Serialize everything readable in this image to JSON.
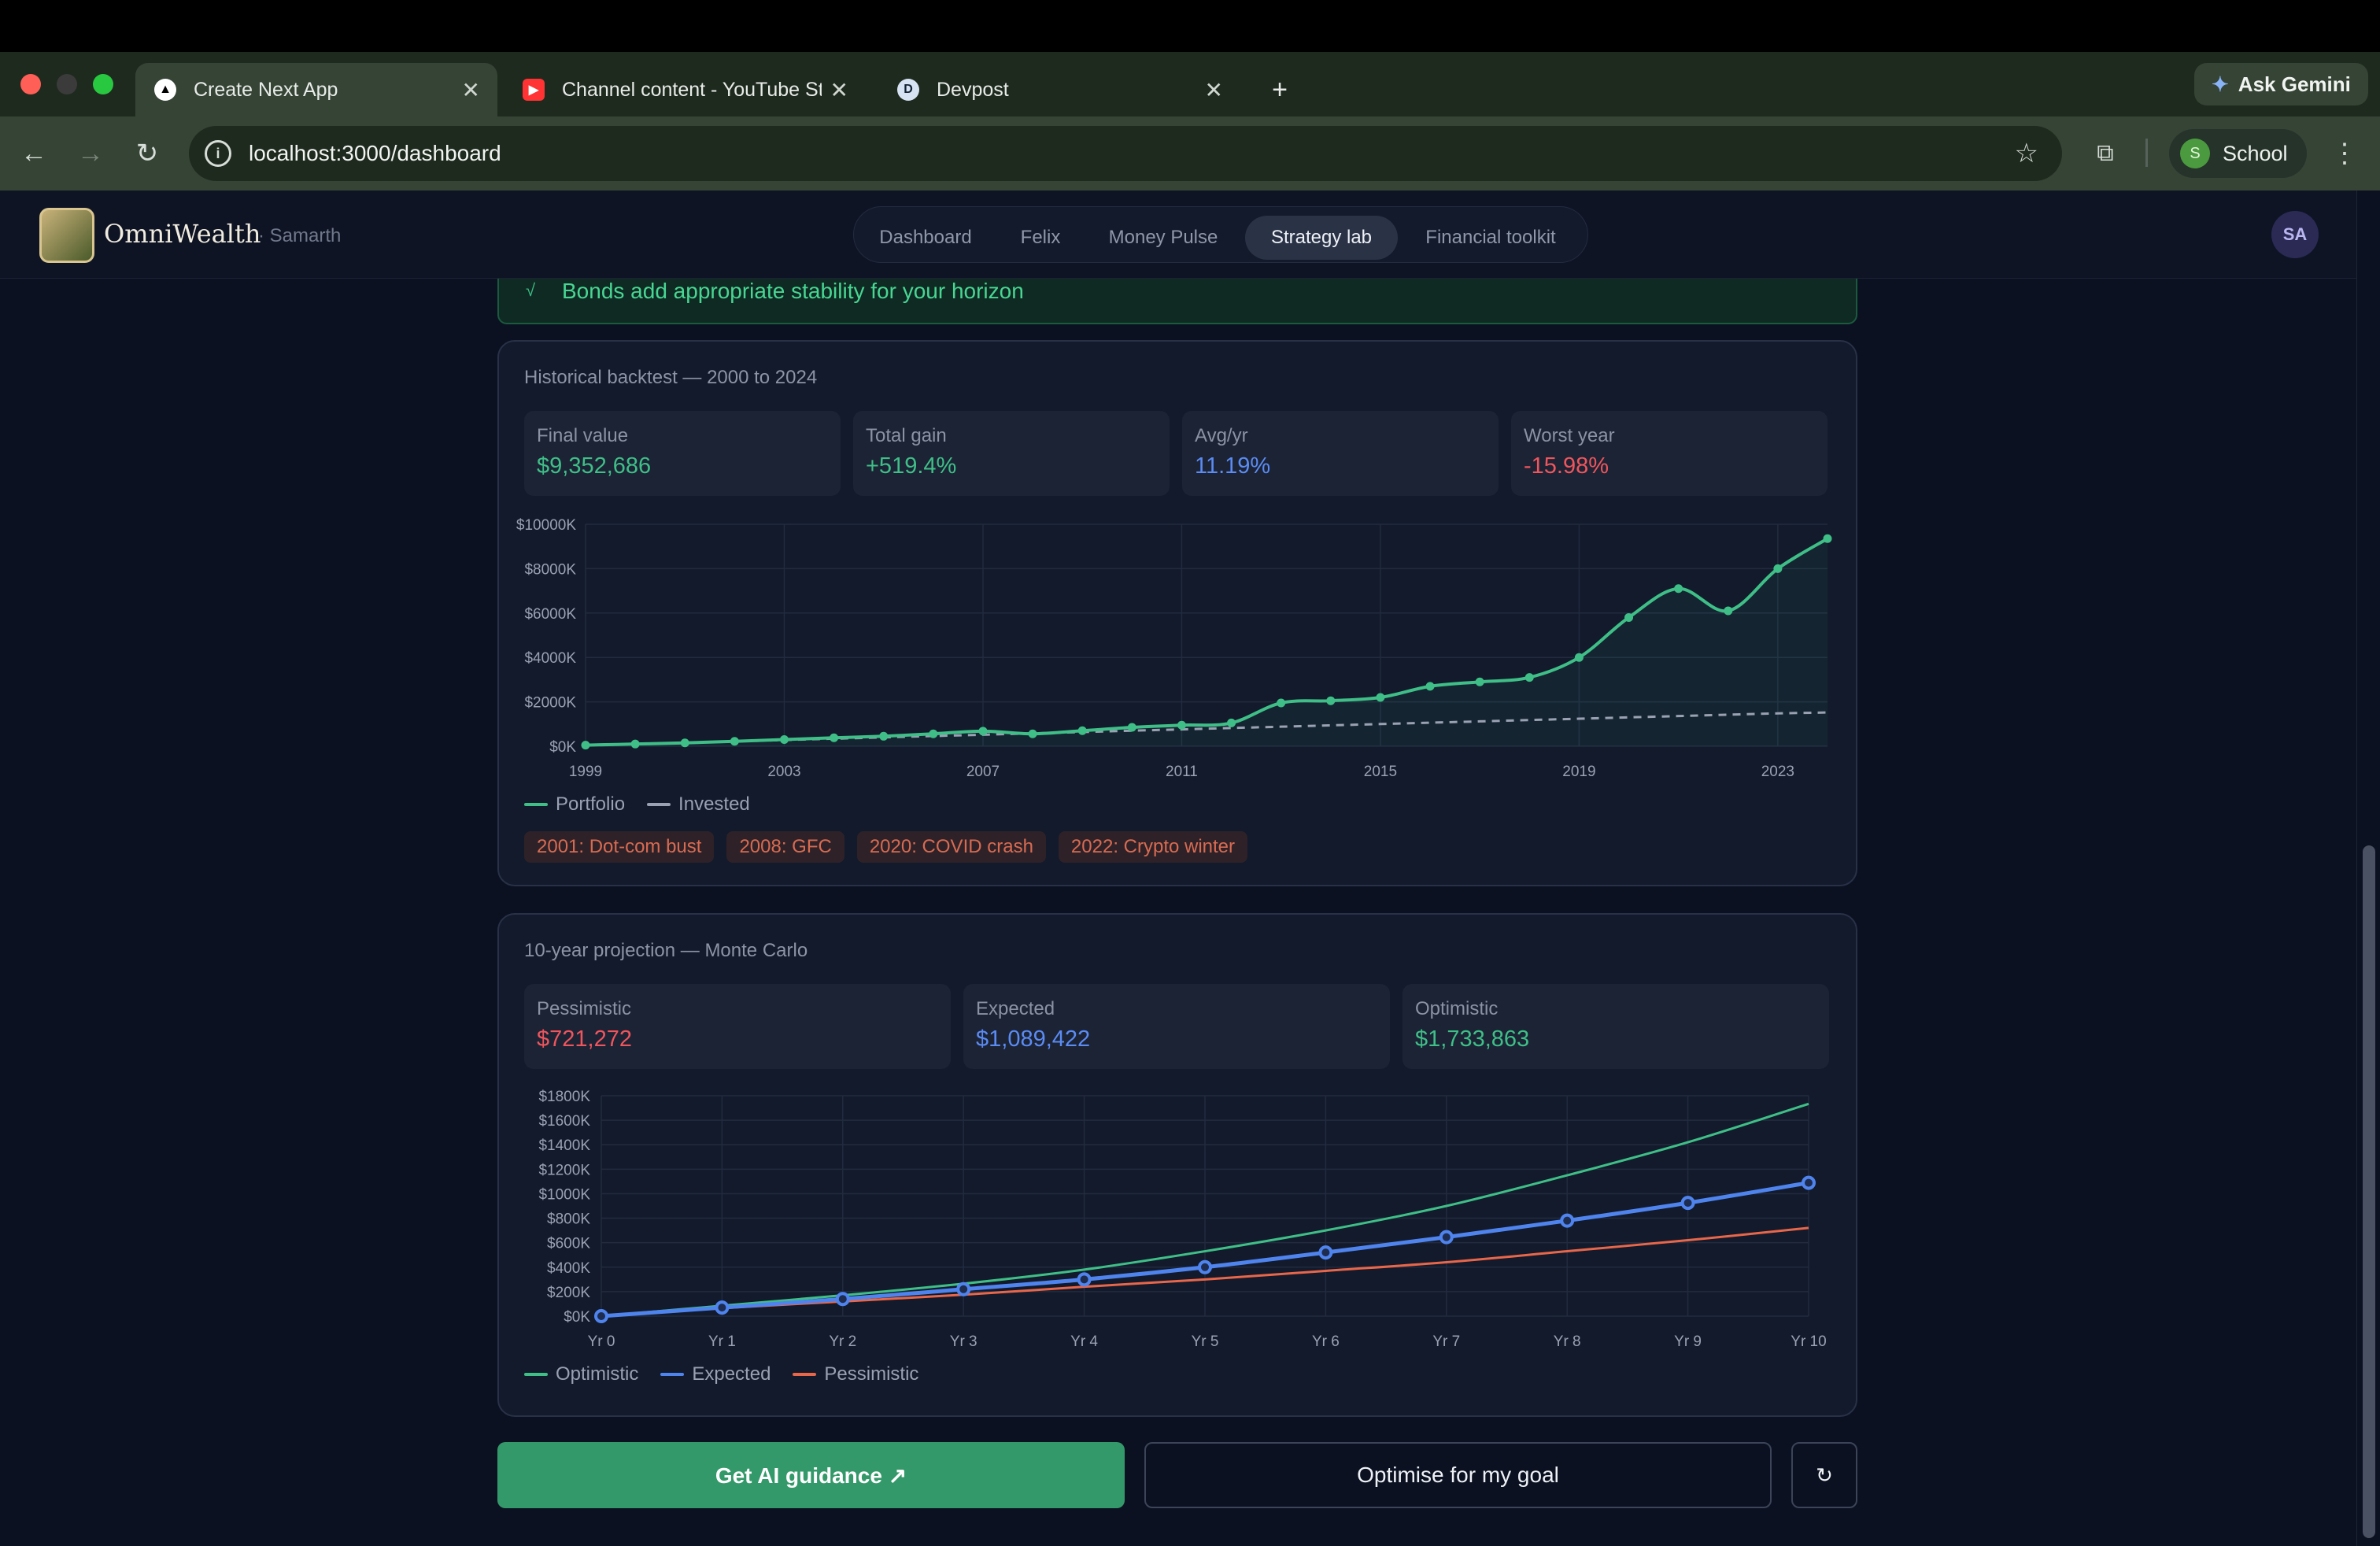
{
  "browser": {
    "tabs": [
      {
        "title": "Create Next App",
        "active": true,
        "favicon": "triangle-icon"
      },
      {
        "title": "Channel content - YouTube St",
        "active": false,
        "favicon": "youtube-icon"
      },
      {
        "title": "Devpost",
        "active": false,
        "favicon": "devpost-icon",
        "favicon_letter": "D"
      }
    ],
    "gemini_label": "Ask Gemini",
    "url": "localhost:3000/dashboard",
    "profile_label": "School",
    "profile_initial": "S"
  },
  "app": {
    "brand": "OmniWealth",
    "user": "· Samarth",
    "nav": [
      "Dashboard",
      "Felix",
      "Money Pulse",
      "Strategy lab",
      "Financial toolkit"
    ],
    "active_nav": "Strategy lab",
    "avatar": "SA",
    "banner_text": "Bonds add appropriate stability for your horizon",
    "banner_icon": "√"
  },
  "backtest": {
    "title": "Historical backtest — 2000 to 2024",
    "stats": [
      {
        "label": "Final value",
        "value": "$9,352,686",
        "tone": "green"
      },
      {
        "label": "Total gain",
        "value": "+519.4%",
        "tone": "green"
      },
      {
        "label": "Avg/yr",
        "value": "11.19%",
        "tone": "blue"
      },
      {
        "label": "Worst year",
        "value": "-15.98%",
        "tone": "red"
      }
    ],
    "legend": [
      "Portfolio",
      "Invested"
    ],
    "events": [
      "2001: Dot-com bust",
      "2008: GFC",
      "2020: COVID crash",
      "2022: Crypto winter"
    ]
  },
  "projection": {
    "title": "10-year projection — Monte Carlo",
    "stats": [
      {
        "label": "Pessimistic",
        "value": "$721,272",
        "tone": "red"
      },
      {
        "label": "Expected",
        "value": "$1,089,422",
        "tone": "blue"
      },
      {
        "label": "Optimistic",
        "value": "$1,733,863",
        "tone": "green"
      }
    ],
    "legend": [
      "Optimistic",
      "Expected",
      "Pessimistic"
    ]
  },
  "actions": {
    "primary": "Get AI guidance ↗",
    "secondary": "Optimise for my goal",
    "refresh": "↻"
  },
  "colors": {
    "green": "#3fbf87",
    "blue": "#4f84ee",
    "red": "#e8664a",
    "grey": "#9aa1b3"
  },
  "chart_data": [
    {
      "type": "line",
      "x": [
        1999,
        2000,
        2001,
        2002,
        2003,
        2004,
        2005,
        2006,
        2007,
        2008,
        2009,
        2010,
        2011,
        2012,
        2013,
        2014,
        2015,
        2016,
        2017,
        2018,
        2019,
        2020,
        2021,
        2022,
        2023,
        2024
      ],
      "xticks": [
        1999,
        2003,
        2007,
        2011,
        2015,
        2019,
        2023
      ],
      "yticks": [
        "$0K",
        "$2000K",
        "$4000K",
        "$6000K",
        "$8000K",
        "$10000K"
      ],
      "ylim": [
        0,
        10000
      ],
      "series": [
        {
          "name": "Portfolio",
          "values": [
            50,
            100,
            150,
            220,
            300,
            380,
            450,
            560,
            680,
            560,
            700,
            850,
            950,
            1050,
            1950,
            2050,
            2200,
            2700,
            2900,
            3100,
            4000,
            5800,
            7100,
            6100,
            8000,
            9353
          ]
        },
        {
          "name": "Invested",
          "values": [
            50,
            100,
            160,
            220,
            280,
            340,
            400,
            460,
            520,
            580,
            640,
            700,
            760,
            820,
            880,
            940,
            1000,
            1060,
            1120,
            1180,
            1240,
            1300,
            1360,
            1420,
            1480,
            1520
          ]
        }
      ]
    },
    {
      "type": "line",
      "categories": [
        "Yr 0",
        "Yr 1",
        "Yr 2",
        "Yr 3",
        "Yr 4",
        "Yr 5",
        "Yr 6",
        "Yr 7",
        "Yr 8",
        "Yr 9",
        "Yr 10"
      ],
      "yticks": [
        "$0K",
        "$200K",
        "$400K",
        "$600K",
        "$800K",
        "$1000K",
        "$1200K",
        "$1400K",
        "$1600K",
        "$1800K"
      ],
      "ylim": [
        0,
        1800
      ],
      "series": [
        {
          "name": "Optimistic",
          "values": [
            0,
            85,
            170,
            265,
            380,
            530,
            700,
            900,
            1150,
            1420,
            1734
          ]
        },
        {
          "name": "Expected",
          "values": [
            0,
            70,
            140,
            220,
            300,
            400,
            520,
            645,
            780,
            925,
            1089
          ]
        },
        {
          "name": "Pessimistic",
          "values": [
            0,
            65,
            120,
            175,
            240,
            300,
            370,
            440,
            530,
            620,
            721
          ]
        }
      ]
    }
  ]
}
